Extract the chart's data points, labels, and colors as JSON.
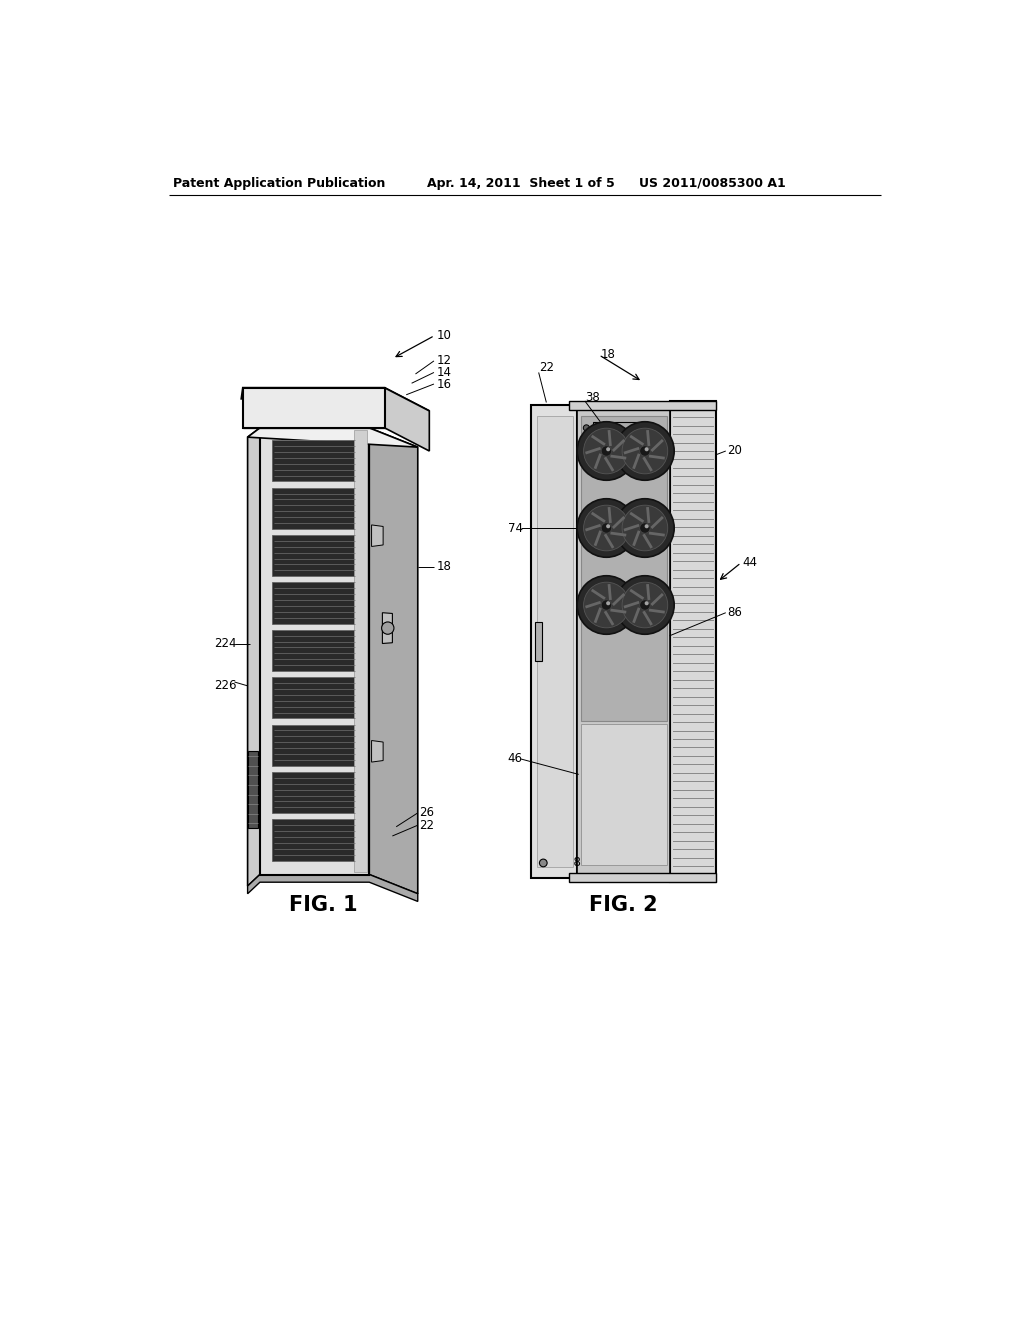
{
  "bg_color": "#ffffff",
  "header_left": "Patent Application Publication",
  "header_mid": "Apr. 14, 2011  Sheet 1 of 5",
  "header_right": "US 2011/0085300 A1",
  "fig1_label": "FIG. 1",
  "fig2_label": "FIG. 2",
  "lc": "#000000",
  "c_white": "#ffffff",
  "c_light": "#f0f0f0",
  "c_mid_light": "#e0e0e0",
  "c_mid": "#cccccc",
  "c_mid_dark": "#aaaaaa",
  "c_dark": "#888888",
  "c_darker": "#606060",
  "c_darkest": "#333333",
  "c_vent": "#2a2a2a"
}
